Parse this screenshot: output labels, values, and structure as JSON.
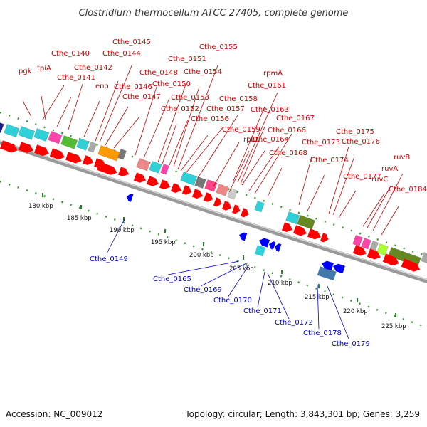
{
  "title": "Clostridium thermocellum ATCC 27405, complete genome",
  "footer": {
    "accession": "Accession: NC_009012",
    "summary": "Topology: circular; Length: 3,843,301 bp; Genes: 3,259"
  },
  "colors": {
    "forward_gene": "#ff0000",
    "reverse_gene": "#0000ff",
    "forward_label": "#cc0000",
    "reverse_label": "#0000cc",
    "backbone": "#999999",
    "tick_dots": "#228822"
  },
  "ticks": [
    "180 kbp",
    "185 kbp",
    "190 kbp",
    "195 kbp",
    "200 kbp",
    "205 kbp",
    "210 kbp",
    "215 kbp",
    "220 kbp",
    "225 kbp"
  ],
  "forward_labels": [
    "pgk",
    "tpiA",
    "Cthe_0140",
    "Cthe_0141",
    "Cthe_0142",
    "eno",
    "Cthe_0144",
    "Cthe_0145",
    "Cthe_0146",
    "Cthe_0147",
    "Cthe_0148",
    "Cthe_0150",
    "Cthe_0151",
    "Cthe_0152",
    "Cthe_0153",
    "Cthe_0154",
    "Cthe_0155",
    "Cthe_0156",
    "Cthe_0157",
    "Cthe_0158",
    "Cthe_0159",
    "rplU",
    "Cthe_0161",
    "rpmA",
    "Cthe_0163",
    "Cthe_0164",
    "Cthe_0166",
    "Cthe_0167",
    "Cthe_0168",
    "Cthe_0173",
    "Cthe_0174",
    "Cthe_0175",
    "Cthe_0176",
    "Cthe_0177",
    "ruvC",
    "ruvA",
    "ruvB",
    "Cthe_0184"
  ],
  "reverse_labels": [
    "Cthe_0149",
    "Cthe_0165",
    "Cthe_0169",
    "Cthe_0170",
    "Cthe_0171",
    "Cthe_0172",
    "Cthe_0178",
    "Cthe_0179"
  ]
}
